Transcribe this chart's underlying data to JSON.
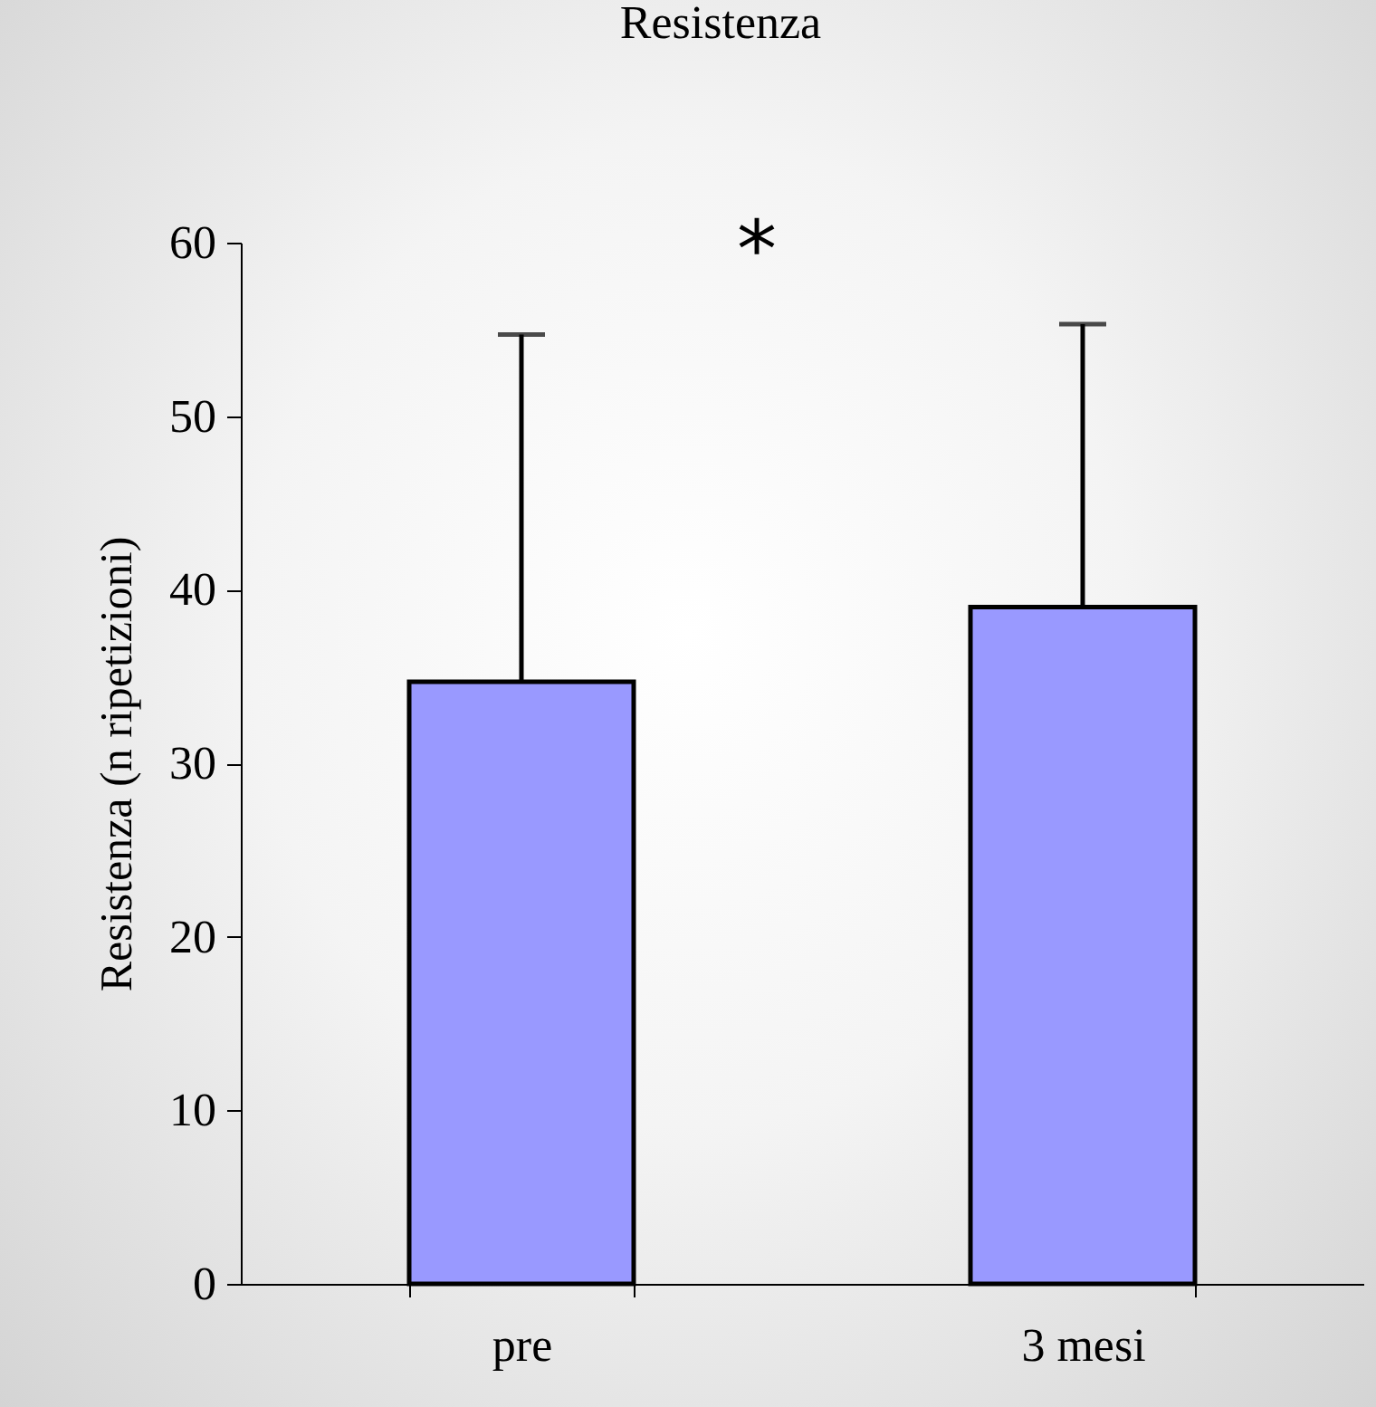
{
  "chart_data": {
    "type": "bar",
    "title": "Resistenza",
    "ylabel": "Resistenza (n ripetizioni)",
    "categories": [
      "pre",
      "3 mesi"
    ],
    "values": [
      34.7,
      39.0
    ],
    "errors": [
      20.0,
      16.3
    ],
    "color": "#9999ff",
    "ylim": [
      0,
      60
    ],
    "yticks": [
      0,
      10,
      20,
      30,
      40,
      50,
      60
    ],
    "annotations": [
      "*"
    ]
  }
}
